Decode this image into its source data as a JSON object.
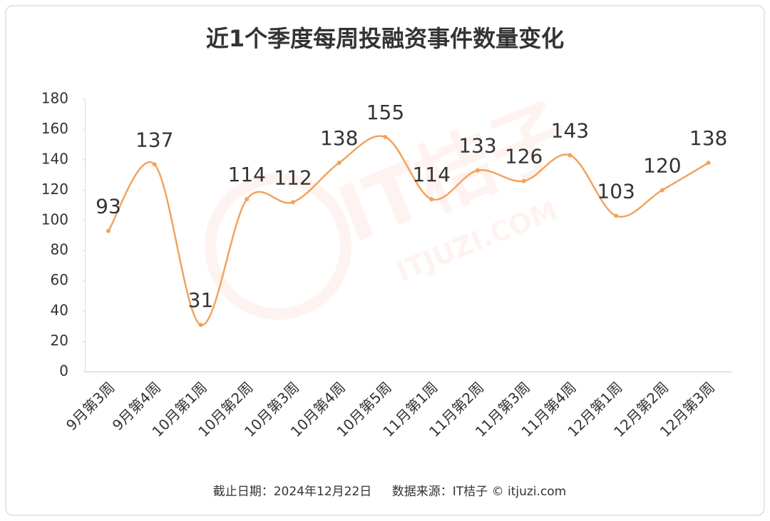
{
  "chart_data": {
    "type": "line",
    "title": "近1个季度每周投融资事件数量变化",
    "categories": [
      "9月第3周",
      "9月第4周",
      "10月第1周",
      "10月第2周",
      "10月第3周",
      "10月第4周",
      "10月第5周",
      "11月第1周",
      "11月第2周",
      "11月第3周",
      "11月第4周",
      "12月第1周",
      "12月第2周",
      "12月第3周"
    ],
    "values": [
      93,
      137,
      31,
      114,
      112,
      138,
      155,
      114,
      133,
      126,
      143,
      103,
      120,
      138
    ],
    "color": "#f3a35c",
    "ylim": [
      0,
      180
    ],
    "yticks": [
      0,
      20,
      40,
      60,
      80,
      100,
      120,
      140,
      160,
      180
    ],
    "grid": false,
    "smooth": true,
    "watermark": {
      "brand": "IT桔子",
      "site": "ITJUZI.COM"
    },
    "footer": {
      "date_note": "截止日期：2024年12月22日",
      "source": "数据来源：IT桔子 © itjuzi.com"
    }
  }
}
